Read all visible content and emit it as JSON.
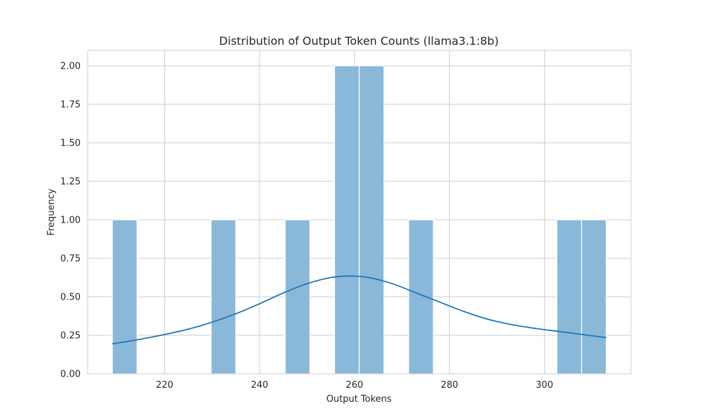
{
  "chart_data": {
    "type": "bar",
    "subtype": "histogram-with-kde",
    "title": "Distribution of Output Token Counts (llama3.1:8b)",
    "xlabel": "Output Tokens",
    "ylabel": "Frequency",
    "xlim": [
      203.8,
      318.2
    ],
    "ylim": [
      0,
      2.1
    ],
    "xticks": [
      220,
      240,
      260,
      280,
      300
    ],
    "yticks": [
      0.0,
      0.25,
      0.5,
      0.75,
      1.0,
      1.25,
      1.5,
      1.75,
      2.0
    ],
    "ytick_labels": [
      "0.00",
      "0.25",
      "0.50",
      "0.75",
      "1.00",
      "1.25",
      "1.50",
      "1.75",
      "2.00"
    ],
    "grid": true,
    "bars": [
      {
        "x0": 209.0,
        "x1": 214.2,
        "count": 1
      },
      {
        "x0": 229.8,
        "x1": 235.0,
        "count": 1
      },
      {
        "x0": 245.4,
        "x1": 250.6,
        "count": 1
      },
      {
        "x0": 255.8,
        "x1": 261.0,
        "count": 2
      },
      {
        "x0": 261.0,
        "x1": 266.2,
        "count": 2
      },
      {
        "x0": 271.4,
        "x1": 276.6,
        "count": 1
      },
      {
        "x0": 302.6,
        "x1": 307.8,
        "count": 1
      },
      {
        "x0": 307.8,
        "x1": 313.0,
        "count": 1
      }
    ],
    "kde": {
      "x": [
        209,
        215,
        220,
        225,
        230,
        235,
        240,
        245,
        250,
        255,
        259,
        263,
        268,
        273,
        278,
        283,
        288,
        293,
        298,
        303,
        308,
        313
      ],
      "y": [
        0.195,
        0.225,
        0.255,
        0.29,
        0.335,
        0.39,
        0.455,
        0.525,
        0.585,
        0.625,
        0.635,
        0.625,
        0.585,
        0.525,
        0.465,
        0.405,
        0.355,
        0.32,
        0.295,
        0.275,
        0.255,
        0.235
      ]
    },
    "colors": {
      "bar_fill": "#8ab8d9",
      "bar_edge": "#ffffff",
      "kde_line": "#1f77b4",
      "grid": "#cccccc"
    }
  }
}
